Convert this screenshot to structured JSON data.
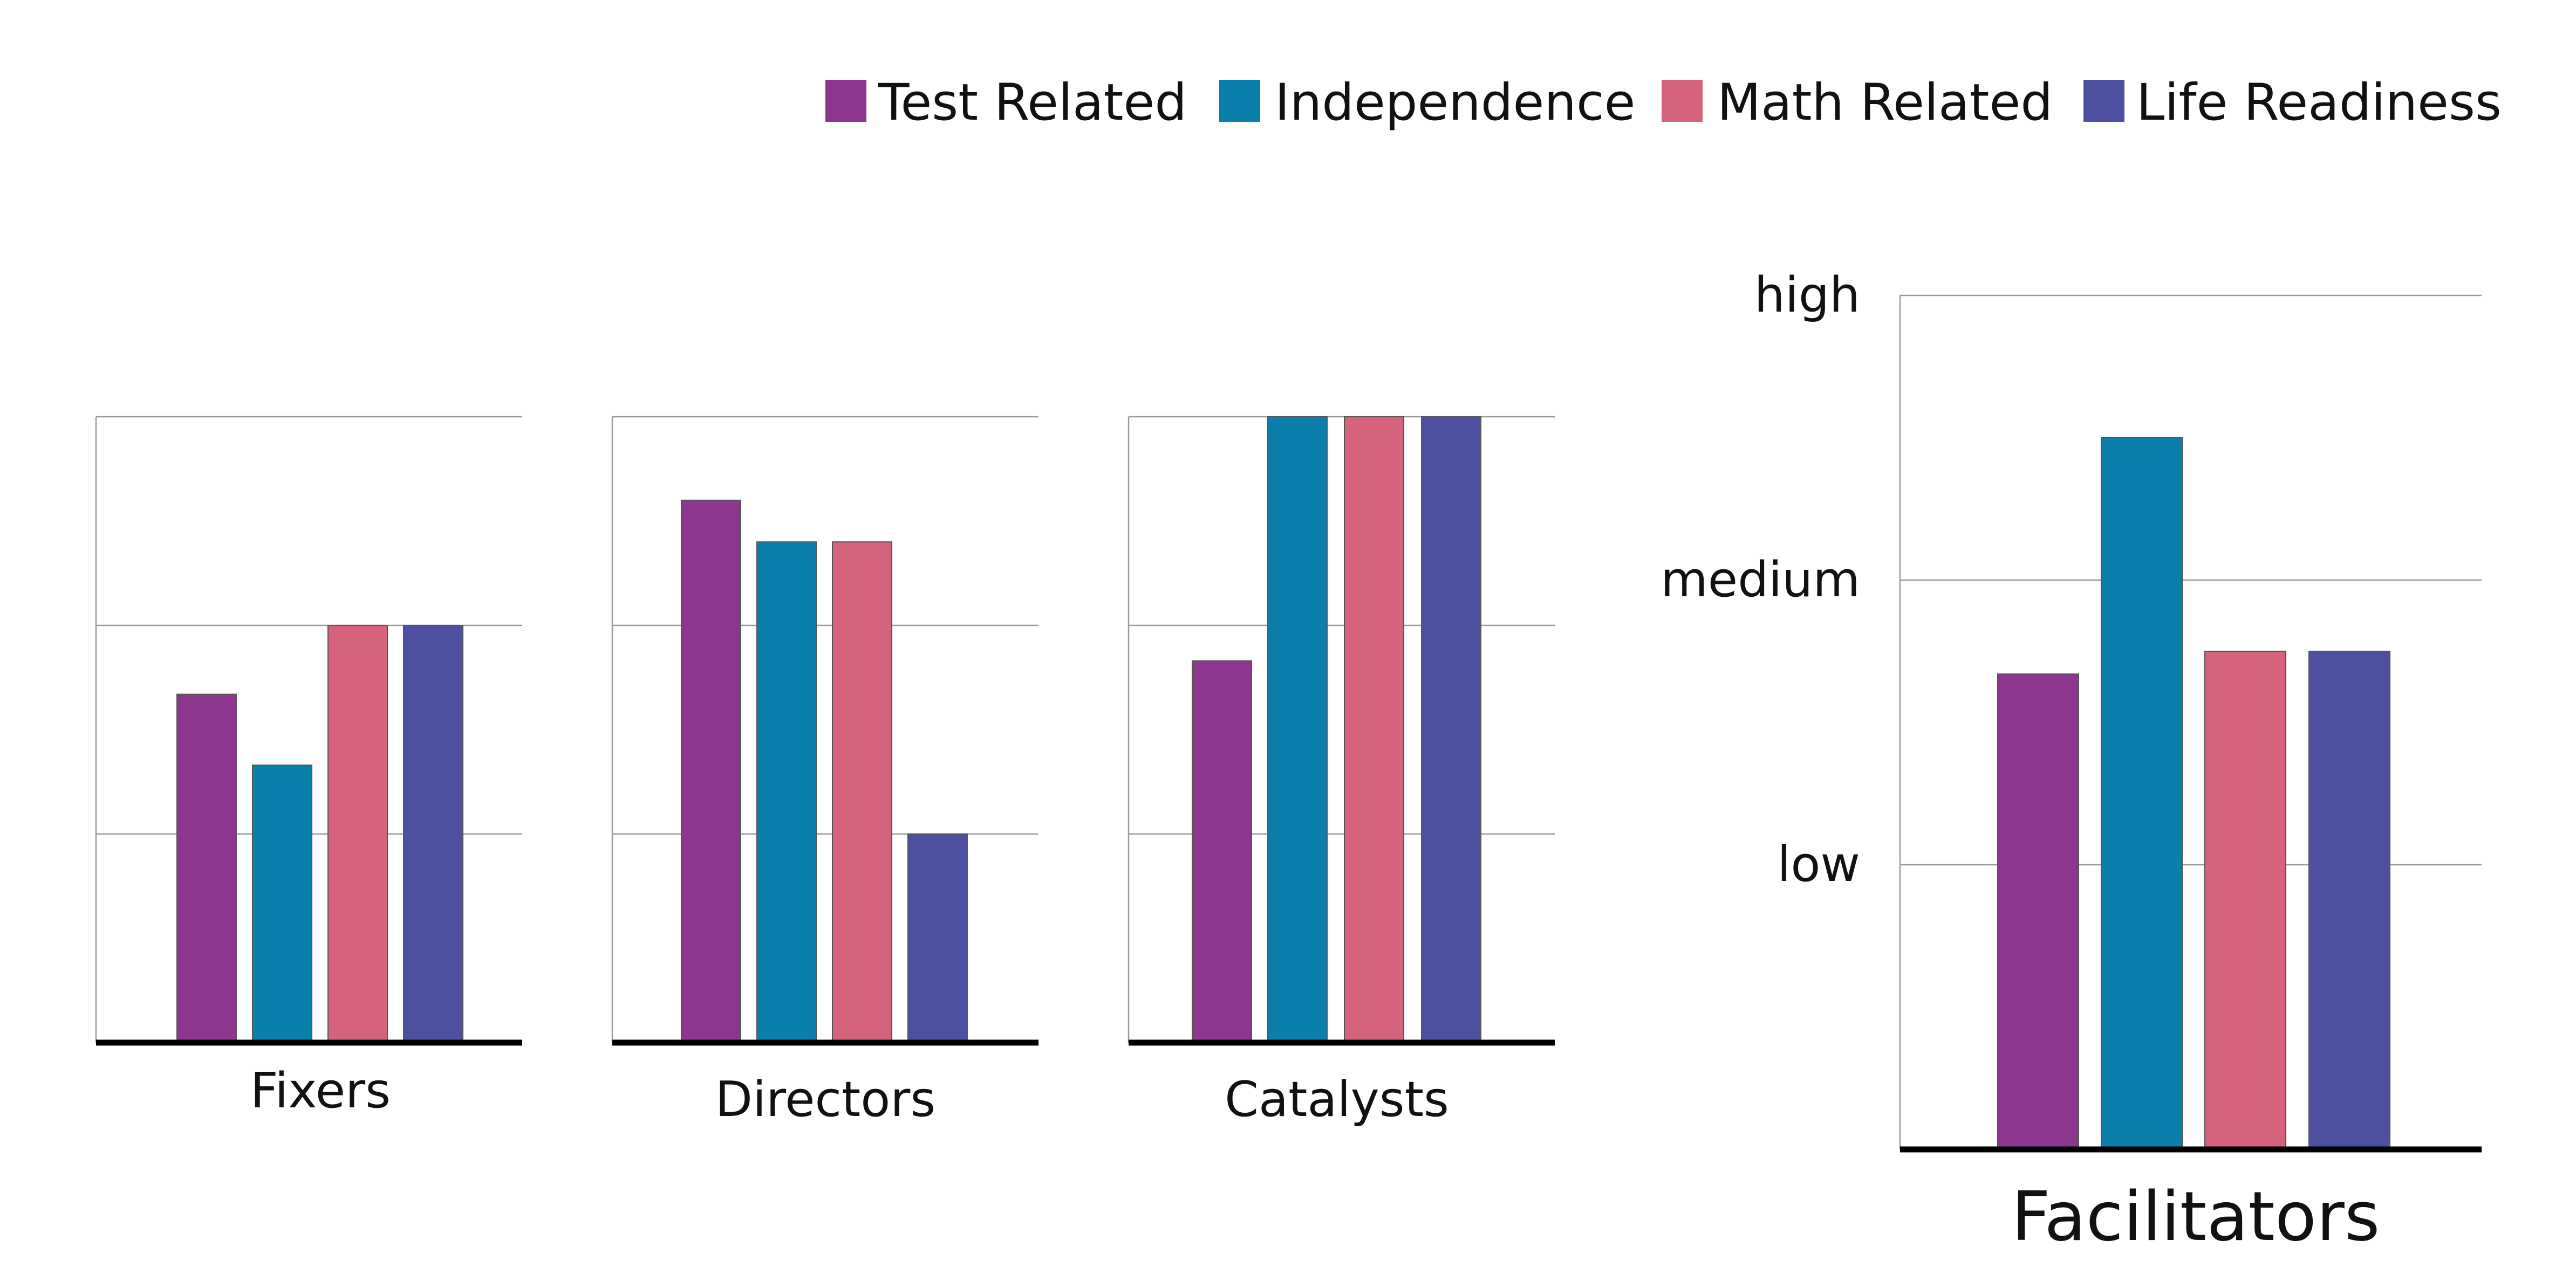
{
  "legend": {
    "items": [
      {
        "label": "Test Related",
        "color": "#8e358f"
      },
      {
        "label": "Independence",
        "color": "#0a7fab"
      },
      {
        "label": "Math Related",
        "color": "#d6637c"
      },
      {
        "label": "Life Readiness",
        "color": "#4d4fa1"
      }
    ]
  },
  "chart_data": [
    {
      "type": "bar",
      "title": "Fixers",
      "categories": [
        "Test Related",
        "Independence",
        "Math Related",
        "Life Readiness"
      ],
      "values": [
        1.67,
        1.33,
        2.0,
        2.0
      ],
      "ylim": [
        0,
        3
      ],
      "grid": true
    },
    {
      "type": "bar",
      "title": "Directors",
      "categories": [
        "Test Related",
        "Independence",
        "Math Related",
        "Life Readiness"
      ],
      "values": [
        2.6,
        2.4,
        2.4,
        1.0
      ],
      "ylim": [
        0,
        3
      ],
      "grid": true
    },
    {
      "type": "bar",
      "title": "Catalysts",
      "categories": [
        "Test Related",
        "Independence",
        "Math Related",
        "Life Readiness"
      ],
      "values": [
        1.83,
        3.0,
        3.0,
        3.0
      ],
      "ylim": [
        0,
        3
      ],
      "grid": true
    },
    {
      "type": "bar",
      "title": "Facilitators",
      "categories": [
        "Test Related",
        "Independence",
        "Math Related",
        "Life Readiness"
      ],
      "values": [
        1.67,
        2.5,
        1.75,
        1.75
      ],
      "ylim": [
        0,
        3
      ],
      "yticks": [
        {
          "value": 1,
          "label": "low"
        },
        {
          "value": 2,
          "label": "medium"
        },
        {
          "value": 3,
          "label": "high"
        }
      ],
      "grid": true
    }
  ]
}
